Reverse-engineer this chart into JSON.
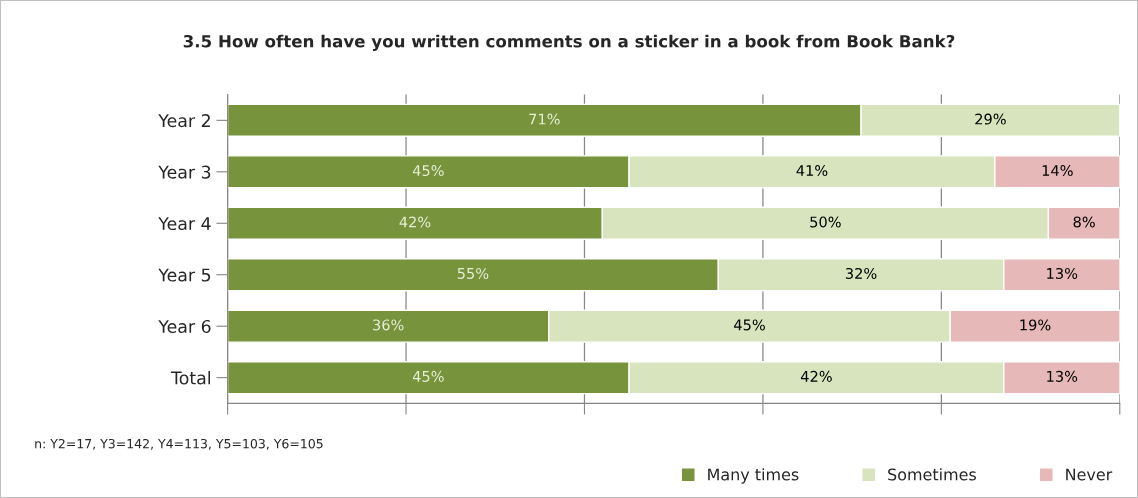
{
  "chart_data": {
    "type": "bar",
    "orientation": "horizontal",
    "stacked": true,
    "title": "3.5 How often have you written comments on a sticker in a book from Book Bank?",
    "categories": [
      "Year 2",
      "Year 3",
      "Year 4",
      "Year 5",
      "Year 6",
      "Total"
    ],
    "series": [
      {
        "name": "Many times",
        "color": "#77933c",
        "values": [
          71,
          45,
          42,
          55,
          36,
          45
        ],
        "value_labels": [
          "71%",
          "45%",
          "42%",
          "55%",
          "36%",
          "45%"
        ]
      },
      {
        "name": "Sometimes",
        "color": "#d7e4bd",
        "values": [
          29,
          41,
          50,
          32,
          45,
          42
        ],
        "value_labels": [
          "29%",
          "41%",
          "50%",
          "32%",
          "45%",
          "42%"
        ]
      },
      {
        "name": "Never",
        "color": "#e6b9b8",
        "values": [
          null,
          14,
          8,
          13,
          19,
          13
        ],
        "value_labels": [
          null,
          "14%",
          "8%",
          "13%",
          "19%",
          "13%"
        ]
      }
    ],
    "grid": "x",
    "legend": "bottom right",
    "annotations": [
      "n: Y2=17, Y3=142, Y4=113, Y5=103, Y6=105"
    ]
  }
}
